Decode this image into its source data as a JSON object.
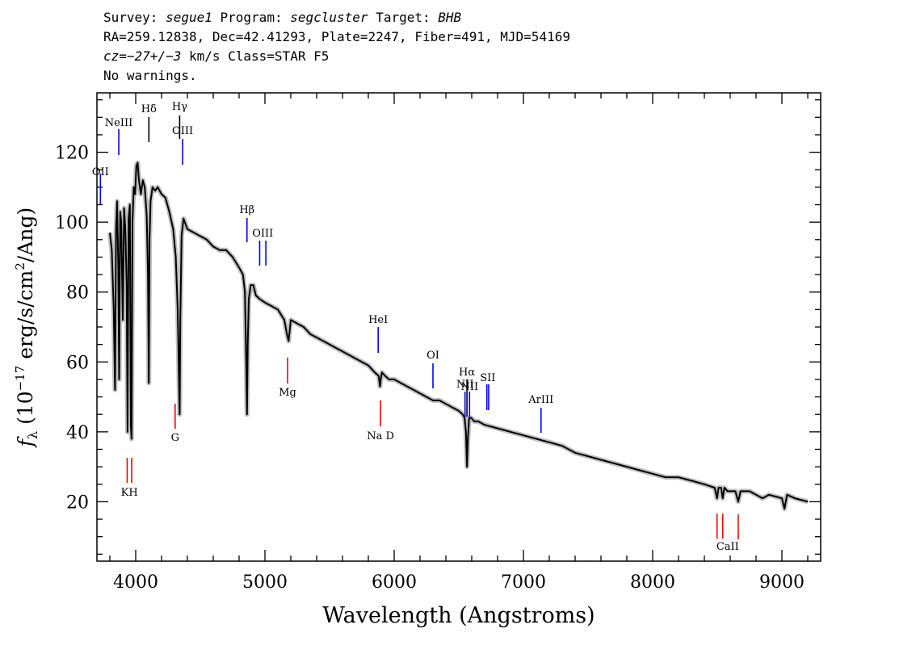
{
  "header": {
    "survey_label": "Survey:",
    "survey": "segue1",
    "program_label": "Program:",
    "program": "segcluster",
    "target_label": "Target:",
    "target": "BHB",
    "line2": "RA=259.12838, Dec=42.41293, Plate=2247, Fiber=491, MJD=54169",
    "cz": "cz=−27+/−3",
    "line3_rest": " km/s Class=STAR F5",
    "line4": "No warnings."
  },
  "chart_data": {
    "type": "line",
    "xlabel": "Wavelength (Angstroms)",
    "ylabel_prefix": "f",
    "ylabel_sub": "λ",
    "ylabel_body": " (10",
    "ylabel_exp": "−17",
    "ylabel_mid": " erg/s/cm",
    "ylabel_exp2": "2",
    "ylabel_tail": "/Ang)",
    "xlim": [
      3700,
      9300
    ],
    "ylim": [
      3,
      137
    ],
    "xticks": [
      4000,
      5000,
      6000,
      7000,
      8000,
      9000
    ],
    "yticks": [
      20,
      40,
      60,
      80,
      100,
      120
    ],
    "series": [
      {
        "color": "#000000",
        "x": [
          3800,
          3815,
          3830,
          3840,
          3848,
          3856,
          3865,
          3872,
          3880,
          3888,
          3900,
          3910,
          3920,
          3930,
          3937,
          3945,
          3955,
          3962,
          3968,
          3975,
          3985,
          3995,
          4005,
          4015,
          4025,
          4040,
          4055,
          4070,
          4085,
          4095,
          4101,
          4107,
          4115,
          4130,
          4150,
          4170,
          4200,
          4230,
          4260,
          4290,
          4310,
          4325,
          4335,
          4340,
          4345,
          4355,
          4370,
          4400,
          4450,
          4500,
          4550,
          4600,
          4650,
          4700,
          4750,
          4800,
          4830,
          4845,
          4855,
          4861,
          4867,
          4875,
          4890,
          4910,
          4930,
          4960,
          5000,
          5050,
          5100,
          5150,
          5170,
          5183,
          5200,
          5250,
          5300,
          5350,
          5400,
          5450,
          5500,
          5550,
          5600,
          5650,
          5700,
          5750,
          5800,
          5850,
          5880,
          5890,
          5896,
          5905,
          5930,
          5960,
          6000,
          6050,
          6100,
          6150,
          6200,
          6250,
          6300,
          6350,
          6400,
          6450,
          6500,
          6530,
          6545,
          6555,
          6563,
          6570,
          6580,
          6595,
          6620,
          6650,
          6700,
          6800,
          6900,
          7000,
          7100,
          7200,
          7300,
          7400,
          7500,
          7600,
          7700,
          7800,
          7900,
          8000,
          8100,
          8200,
          8300,
          8400,
          8480,
          8498,
          8510,
          8530,
          8542,
          8555,
          8580,
          8640,
          8662,
          8680,
          8750,
          8800,
          8850,
          8900,
          9000,
          9020,
          9040,
          9100,
          9200
        ],
        "y": [
          97,
          92,
          75,
          52,
          98,
          106,
          88,
          55,
          103,
          100,
          72,
          104,
          98,
          82,
          40,
          101,
          105,
          42,
          38,
          100,
          110,
          108,
          116,
          117,
          112,
          108,
          112,
          110,
          102,
          85,
          54,
          95,
          106,
          110,
          109,
          110,
          108,
          107,
          103,
          98,
          90,
          75,
          55,
          45,
          72,
          96,
          101,
          98,
          97,
          96,
          95,
          93,
          92,
          92,
          90,
          87,
          85,
          80,
          60,
          45,
          65,
          78,
          82,
          82,
          79,
          78,
          77,
          76,
          75,
          72,
          68,
          66,
          72,
          71,
          70,
          68,
          67,
          66,
          65,
          64,
          63,
          62,
          61,
          60,
          59,
          57,
          56,
          53,
          55,
          57,
          56,
          55,
          55,
          54,
          53,
          52,
          51,
          50,
          49,
          49,
          48,
          47,
          46,
          45,
          44,
          40,
          30,
          38,
          44,
          44,
          43,
          43,
          42,
          41,
          40,
          39,
          38,
          37,
          36,
          34,
          33,
          32,
          31,
          30,
          29,
          28,
          27,
          27,
          26,
          25,
          24,
          21,
          24,
          24,
          21,
          24,
          23,
          23,
          20,
          23,
          23,
          22,
          21,
          22,
          21,
          18,
          22,
          21,
          20
        ]
      }
    ],
    "line_markers": [
      {
        "label": "OII",
        "x": 3727,
        "color": "#0000ff"
      },
      {
        "label": "NeIII",
        "x": 3869,
        "color": "#0000ff"
      },
      {
        "label": "Hδ",
        "x": 4102,
        "color": "#000000"
      },
      {
        "label": "Hγ",
        "x": 4340,
        "color": "#000000"
      },
      {
        "label": "OIII",
        "x": 4363,
        "color": "#0000ff"
      },
      {
        "label": "Hβ",
        "x": 4861,
        "color": "#0000ff"
      },
      {
        "label": "OIII",
        "x": 4959,
        "color": "#0000ff"
      },
      {
        "label": "OIII",
        "x": 5007,
        "color": "#0000ff"
      },
      {
        "label": "HeI",
        "x": 5876,
        "color": "#0000ff"
      },
      {
        "label": "OI",
        "x": 6300,
        "color": "#0000ff"
      },
      {
        "label": "NII",
        "x": 6548,
        "color": "#0000ff"
      },
      {
        "label": "Hα",
        "x": 6563,
        "color": "#000000"
      },
      {
        "label": "NII",
        "x": 6583,
        "color": "#0000ff"
      },
      {
        "label": "SII",
        "x": 6717,
        "color": "#0000ff"
      },
      {
        "label": "SII",
        "x": 6731,
        "color": "#0000ff"
      },
      {
        "label": "ArIII",
        "x": 7136,
        "color": "#0000ff"
      },
      {
        "label": "K",
        "x": 3934,
        "color": "#ff0000"
      },
      {
        "label": "H",
        "x": 3969,
        "color": "#ff0000"
      },
      {
        "label": "G",
        "x": 4305,
        "color": "#ff0000"
      },
      {
        "label": "Mg",
        "x": 5175,
        "color": "#ff0000"
      },
      {
        "label": "Na D",
        "x": 5894,
        "color": "#ff0000"
      },
      {
        "label": "CaII",
        "x": 8498,
        "color": "#ff0000"
      },
      {
        "label": "CaII",
        "x": 8542,
        "color": "#ff0000"
      },
      {
        "label": "CaII",
        "x": 8662,
        "color": "#ff0000"
      }
    ],
    "marker_labels": [
      {
        "text": "OII",
        "x": 3727,
        "color": "#000000"
      },
      {
        "text": "NeIII",
        "x": 3869,
        "color": "#000000"
      },
      {
        "text": "Hδ",
        "x": 4102,
        "color": "#000000"
      },
      {
        "text": "Hγ",
        "x": 4340,
        "color": "#000000"
      },
      {
        "text": "OIII",
        "x": 4363,
        "color": "#000000"
      },
      {
        "text": "Hβ",
        "x": 4861,
        "color": "#000000"
      },
      {
        "text": "OIII",
        "x": 4983,
        "color": "#000000"
      },
      {
        "text": "HeI",
        "x": 5876,
        "color": "#000000"
      },
      {
        "text": "OI",
        "x": 6300,
        "color": "#000000"
      },
      {
        "text": "NII",
        "x": 6548,
        "color": "#000000"
      },
      {
        "text": "Hα",
        "x": 6563,
        "color": "#000000"
      },
      {
        "text": "NII",
        "x": 6583,
        "color": "#000000"
      },
      {
        "text": "SII",
        "x": 6724,
        "color": "#000000"
      },
      {
        "text": "ArIII",
        "x": 7136,
        "color": "#000000"
      },
      {
        "text": "KH",
        "x": 3951,
        "color": "#000000"
      },
      {
        "text": "G",
        "x": 4305,
        "color": "#000000"
      },
      {
        "text": "Mg",
        "x": 5175,
        "color": "#000000"
      },
      {
        "text": "Na  D",
        "x": 5894,
        "color": "#000000"
      },
      {
        "text": "CaII",
        "x": 8580,
        "color": "#000000"
      }
    ]
  }
}
